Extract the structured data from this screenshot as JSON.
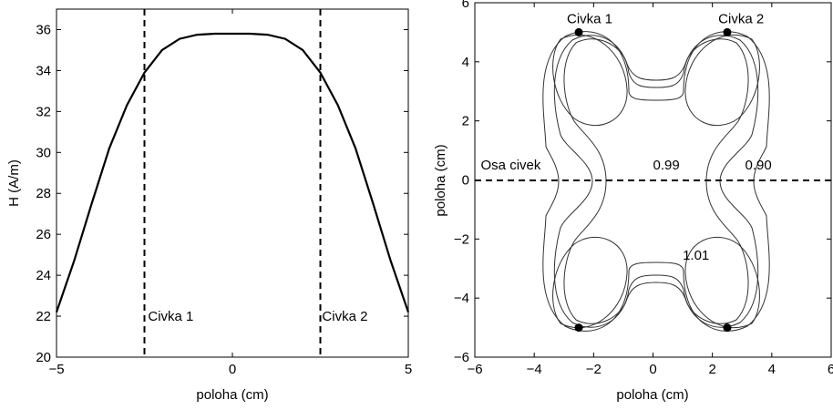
{
  "chart_data": [
    {
      "type": "line",
      "xlabel": "poloha (cm)",
      "ylabel": "H (A/m)",
      "xlim": [
        -5,
        5
      ],
      "ylim": [
        20,
        37
      ],
      "xticks": [
        -5,
        0,
        5
      ],
      "yticks": [
        20,
        22,
        24,
        26,
        28,
        30,
        32,
        34,
        36
      ],
      "xtick_labels": [
        "−5",
        "0",
        "5"
      ],
      "ytick_labels": [
        "20",
        "22",
        "24",
        "26",
        "28",
        "30",
        "32",
        "34",
        "36"
      ],
      "grid": false,
      "series": [
        {
          "x": [
            -5,
            -4.5,
            -4,
            -3.5,
            -3,
            -2.5,
            -2,
            -1.5,
            -1,
            -0.5,
            0,
            0.5,
            1,
            1.5,
            2,
            2.5,
            3,
            3.5,
            4,
            4.5,
            5
          ],
          "y": [
            22.2,
            24.7,
            27.5,
            30.2,
            32.3,
            33.9,
            35.0,
            35.55,
            35.75,
            35.8,
            35.8,
            35.8,
            35.75,
            35.55,
            35.0,
            33.9,
            32.3,
            30.2,
            27.5,
            24.7,
            22.2
          ]
        }
      ],
      "vlines": [
        -2.5,
        2.5
      ],
      "annotations": [
        {
          "text": "Civka 1",
          "x": -2.4,
          "y": 22.0
        },
        {
          "text": "Civka 2",
          "x": 2.55,
          "y": 22.0
        }
      ]
    },
    {
      "type": "line",
      "xlabel": "poloha (cm)",
      "ylabel": "poloha (cm)",
      "xlim": [
        -6,
        6
      ],
      "ylim": [
        -6,
        6
      ],
      "xticks": [
        -6,
        -4,
        -2,
        0,
        2,
        4,
        6
      ],
      "yticks": [
        -6,
        -4,
        -2,
        0,
        2,
        4,
        6
      ],
      "xtick_labels": [
        "−6",
        "−4",
        "−2",
        "0",
        "2",
        "4",
        "6"
      ],
      "ytick_labels": [
        "−6",
        "−4",
        "−2",
        "0",
        "2",
        "4",
        "6"
      ],
      "grid": false,
      "contour_levels": [
        "0.90",
        "0.99",
        "1.01"
      ],
      "coil_points": [
        {
          "x": -2.5,
          "y": 5
        },
        {
          "x": 2.5,
          "y": 5
        },
        {
          "x": -2.5,
          "y": -5
        },
        {
          "x": 2.5,
          "y": -5
        }
      ],
      "hline": 0,
      "annotations": [
        {
          "text": "Civka 1",
          "x": -2.9,
          "y": 5.3
        },
        {
          "text": "Civka 2",
          "x": 2.2,
          "y": 5.3
        },
        {
          "text": "Osa civek",
          "x": -5.8,
          "y": 0.35
        },
        {
          "text": "0.99",
          "x": 0.0,
          "y": 0.35
        },
        {
          "text": "0.90",
          "x": 3.1,
          "y": 0.35
        },
        {
          "text": "1.01",
          "x": 1.0,
          "y": -2.7
        }
      ]
    }
  ]
}
